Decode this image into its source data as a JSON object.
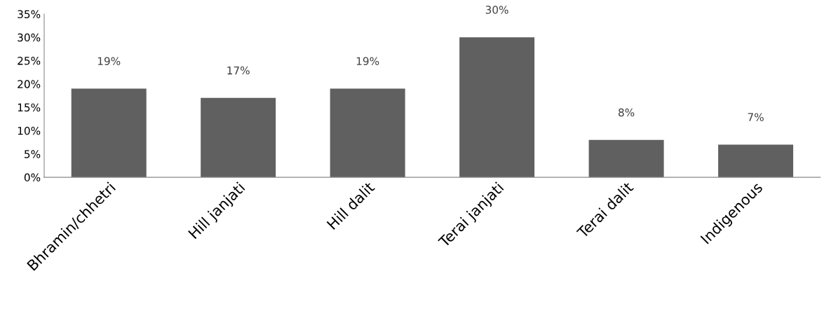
{
  "chart_data": {
    "type": "bar",
    "categories": [
      "Bhramin/chhetri",
      "Hill janjati",
      "Hill dalit",
      "Terai janjati",
      "Terai dalit",
      "Indigenous"
    ],
    "values": [
      19,
      17,
      19,
      30,
      8,
      7
    ],
    "value_labels": [
      "19%",
      "17%",
      "19%",
      "30%",
      "8%",
      "7%"
    ],
    "color": "#606060",
    "ylim": [
      0,
      35
    ],
    "yticks": [
      {
        "value": 0,
        "label": "0%"
      },
      {
        "value": 5,
        "label": "5%"
      },
      {
        "value": 10,
        "label": "10%"
      },
      {
        "value": 15,
        "label": "15%"
      },
      {
        "value": 20,
        "label": "20%"
      },
      {
        "value": 25,
        "label": "25%"
      },
      {
        "value": 30,
        "label": "30%"
      },
      {
        "value": 35,
        "label": "35%"
      }
    ],
    "grid": false,
    "legend": false
  }
}
